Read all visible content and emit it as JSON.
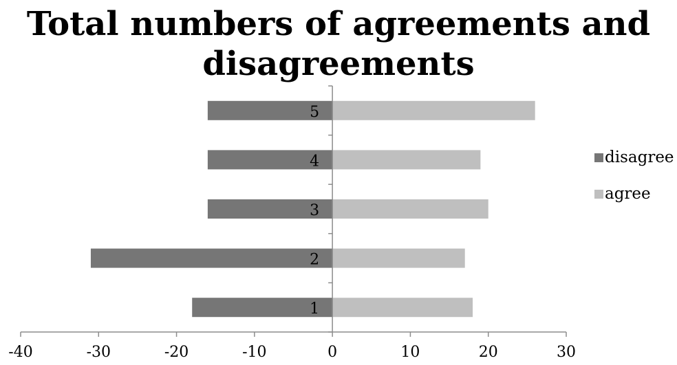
{
  "chart_data": {
    "type": "bar",
    "orientation": "horizontal",
    "stacked": true,
    "title_lines": [
      "Total numbers of agreements and",
      "disagreements"
    ],
    "categories": [
      "1",
      "2",
      "3",
      "4",
      "5"
    ],
    "series": [
      {
        "name": "disagree",
        "values": [
          -18,
          -31,
          -16,
          -16,
          -16
        ],
        "color": "#767676"
      },
      {
        "name": "agree",
        "values": [
          18,
          17,
          20,
          19,
          26
        ],
        "color": "#bfbfbf"
      }
    ],
    "x_ticks": [
      "-40",
      "-30",
      "-20",
      "-10",
      "0",
      "10",
      "20",
      "30"
    ],
    "xlim": [
      -40,
      30
    ],
    "grid": false,
    "legend_position": "right",
    "axis_color": "#8c8c8c"
  }
}
